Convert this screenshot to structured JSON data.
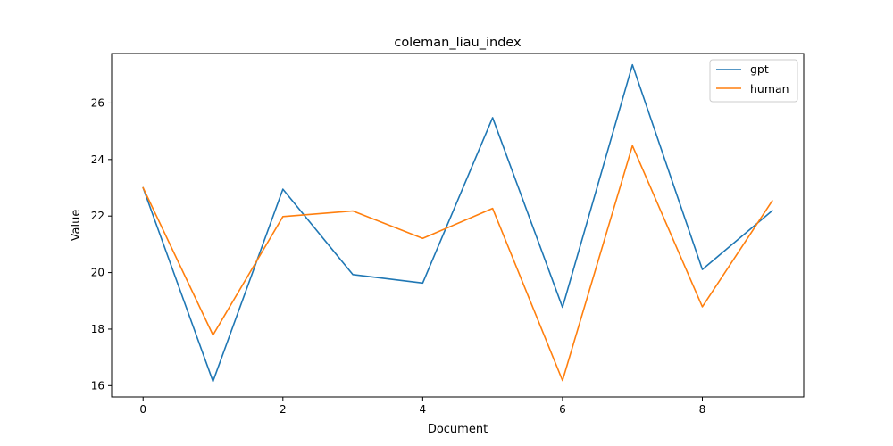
{
  "chart_data": {
    "type": "line",
    "title": "coleman_liau_index",
    "xlabel": "Document",
    "ylabel": "Value",
    "x": [
      0,
      1,
      2,
      3,
      4,
      5,
      6,
      7,
      8,
      9
    ],
    "xticks": [
      0,
      2,
      4,
      6,
      8
    ],
    "yticks": [
      16,
      18,
      20,
      22,
      24,
      26
    ],
    "xlim": [
      -0.45,
      9.45
    ],
    "ylim": [
      15.6,
      27.75
    ],
    "grid": false,
    "legend_position": "top-right",
    "series": [
      {
        "name": "gpt",
        "color": "#1f77b4",
        "values": [
          23.0,
          16.15,
          22.95,
          19.93,
          19.63,
          25.48,
          18.77,
          27.35,
          20.11,
          22.19
        ]
      },
      {
        "name": "human",
        "color": "#ff7f0e",
        "values": [
          23.0,
          17.79,
          21.98,
          22.18,
          21.21,
          22.27,
          16.18,
          24.49,
          18.79,
          22.54
        ]
      }
    ]
  }
}
